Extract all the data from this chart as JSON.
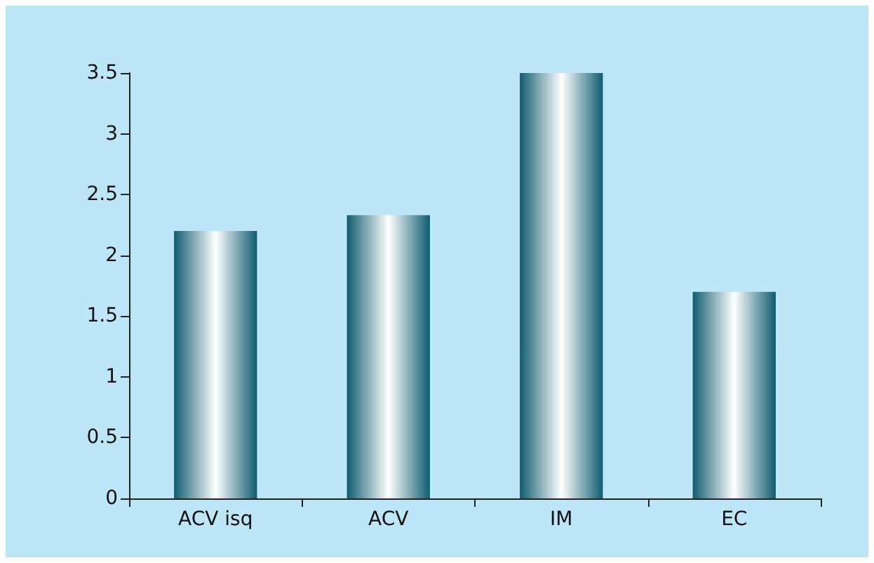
{
  "chart_data": {
    "type": "bar",
    "categories": [
      "ACV isq",
      "ACV",
      "IM",
      "EC"
    ],
    "values": [
      2.2,
      2.33,
      3.5,
      1.7
    ],
    "color": "#0f5c70",
    "ylim": [
      0,
      3.5
    ],
    "yticks": [
      0,
      0.5,
      1,
      1.5,
      2,
      2.5,
      3,
      3.5
    ],
    "grid": false
  }
}
